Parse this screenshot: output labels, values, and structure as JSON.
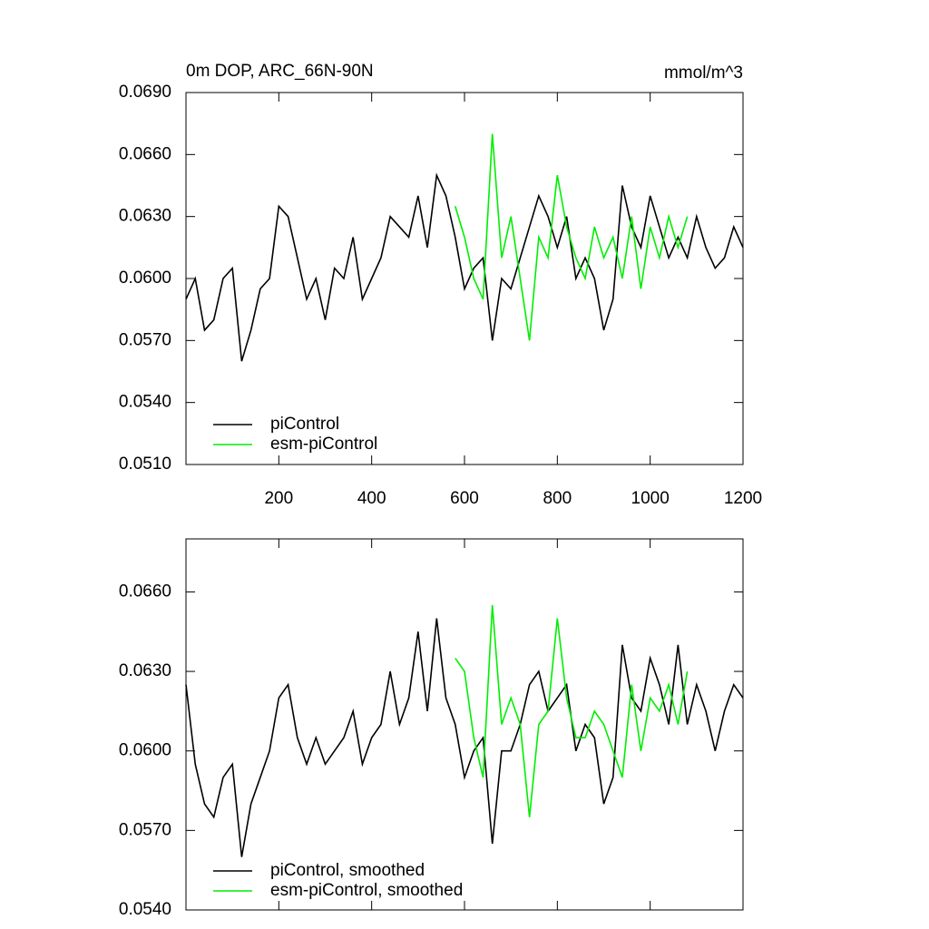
{
  "chart_data": [
    {
      "type": "line",
      "title": "0m DOP, ARC_66N-90N",
      "units": "mmol/m^3",
      "x": [
        0,
        20,
        40,
        60,
        80,
        100,
        120,
        140,
        160,
        180,
        200,
        220,
        240,
        260,
        280,
        300,
        320,
        340,
        360,
        380,
        400,
        420,
        440,
        460,
        480,
        500,
        520,
        540,
        560,
        580,
        600,
        620,
        640,
        660,
        680,
        700,
        720,
        740,
        760,
        780,
        800,
        820,
        840,
        860,
        880,
        900,
        920,
        940,
        960,
        980,
        1000,
        1020,
        1040,
        1060,
        1080,
        1100,
        1120,
        1140,
        1160,
        1180,
        1200
      ],
      "xlim": [
        0,
        1200
      ],
      "xticks": [
        200,
        400,
        600,
        800,
        1000,
        1200
      ],
      "ylim": [
        0.051,
        0.069
      ],
      "yticks": [
        {
          "value": 0.051,
          "label": "0.0510"
        },
        {
          "value": 0.054,
          "label": "0.0540"
        },
        {
          "value": 0.057,
          "label": "0.0570"
        },
        {
          "value": 0.06,
          "label": "0.0600"
        },
        {
          "value": 0.063,
          "label": "0.0630"
        },
        {
          "value": 0.066,
          "label": "0.0660"
        },
        {
          "value": 0.069,
          "label": "0.0690"
        }
      ],
      "series": [
        {
          "name": "piControl",
          "color": "#000000",
          "values": [
            0.059,
            0.06,
            0.0575,
            0.058,
            0.06,
            0.0605,
            0.056,
            0.0575,
            0.0595,
            0.06,
            0.0635,
            0.063,
            0.061,
            0.059,
            0.06,
            0.058,
            0.0605,
            0.06,
            0.062,
            0.059,
            0.06,
            0.061,
            0.063,
            0.0625,
            0.062,
            0.064,
            0.0615,
            0.065,
            0.064,
            0.062,
            0.0595,
            0.0605,
            0.061,
            0.057,
            0.06,
            0.0595,
            0.061,
            0.0625,
            0.064,
            0.063,
            0.0615,
            0.063,
            0.06,
            0.061,
            0.06,
            0.0575,
            0.059,
            0.0645,
            0.0625,
            0.0615,
            0.064,
            0.0625,
            0.061,
            0.062,
            0.061,
            0.063,
            0.0615,
            0.0605,
            0.061,
            0.0625,
            0.0615
          ]
        },
        {
          "name": "esm-piControl",
          "color": "#00ee00",
          "values": [
            null,
            null,
            null,
            null,
            null,
            null,
            null,
            null,
            null,
            null,
            null,
            null,
            null,
            null,
            null,
            null,
            null,
            null,
            null,
            null,
            null,
            null,
            null,
            null,
            null,
            null,
            null,
            null,
            null,
            0.0635,
            0.062,
            0.06,
            0.059,
            0.067,
            0.061,
            0.063,
            0.06,
            0.057,
            0.062,
            0.061,
            0.065,
            0.0625,
            0.061,
            0.06,
            0.0625,
            0.061,
            0.062,
            0.06,
            0.063,
            0.0595,
            0.0625,
            0.061,
            0.063,
            0.0615,
            0.063,
            null,
            null,
            null,
            null,
            null,
            null
          ]
        }
      ]
    },
    {
      "type": "line",
      "x": [
        0,
        20,
        40,
        60,
        80,
        100,
        120,
        140,
        160,
        180,
        200,
        220,
        240,
        260,
        280,
        300,
        320,
        340,
        360,
        380,
        400,
        420,
        440,
        460,
        480,
        500,
        520,
        540,
        560,
        580,
        600,
        620,
        640,
        660,
        680,
        700,
        720,
        740,
        760,
        780,
        800,
        820,
        840,
        860,
        880,
        900,
        920,
        940,
        960,
        980,
        1000,
        1020,
        1040,
        1060,
        1080,
        1100,
        1120,
        1140,
        1160,
        1180,
        1200
      ],
      "xlim": [
        0,
        1200
      ],
      "xticks": [
        200,
        400,
        600,
        800,
        1000,
        1200
      ],
      "ylim": [
        0.054,
        0.068
      ],
      "yticks": [
        {
          "value": 0.054,
          "label": "0.0540"
        },
        {
          "value": 0.057,
          "label": "0.0570"
        },
        {
          "value": 0.06,
          "label": "0.0600"
        },
        {
          "value": 0.063,
          "label": "0.0630"
        },
        {
          "value": 0.066,
          "label": "0.0660"
        }
      ],
      "series": [
        {
          "name": "piControl, smoothed",
          "color": "#000000",
          "values": [
            0.0625,
            0.0595,
            0.058,
            0.0575,
            0.059,
            0.0595,
            0.056,
            0.058,
            0.059,
            0.06,
            0.062,
            0.0625,
            0.0605,
            0.0595,
            0.0605,
            0.0595,
            0.06,
            0.0605,
            0.0615,
            0.0595,
            0.0605,
            0.061,
            0.063,
            0.061,
            0.062,
            0.0645,
            0.0615,
            0.065,
            0.062,
            0.061,
            0.059,
            0.06,
            0.0605,
            0.0565,
            0.06,
            0.06,
            0.061,
            0.0625,
            0.063,
            0.0615,
            0.062,
            0.0625,
            0.06,
            0.061,
            0.0605,
            0.058,
            0.059,
            0.064,
            0.062,
            0.0615,
            0.0635,
            0.0625,
            0.061,
            0.064,
            0.061,
            0.0625,
            0.0615,
            0.06,
            0.0615,
            0.0625,
            0.062
          ]
        },
        {
          "name": "esm-piControl, smoothed",
          "color": "#00ee00",
          "values": [
            null,
            null,
            null,
            null,
            null,
            null,
            null,
            null,
            null,
            null,
            null,
            null,
            null,
            null,
            null,
            null,
            null,
            null,
            null,
            null,
            null,
            null,
            null,
            null,
            null,
            null,
            null,
            null,
            null,
            0.0635,
            0.063,
            0.0605,
            0.059,
            0.0655,
            0.061,
            0.062,
            0.061,
            0.0575,
            0.061,
            0.0615,
            0.065,
            0.062,
            0.0605,
            0.0605,
            0.0615,
            0.061,
            0.06,
            0.059,
            0.0625,
            0.06,
            0.062,
            0.0615,
            0.0625,
            0.061,
            0.063,
            null,
            null,
            null,
            null,
            null,
            null
          ]
        }
      ]
    }
  ]
}
